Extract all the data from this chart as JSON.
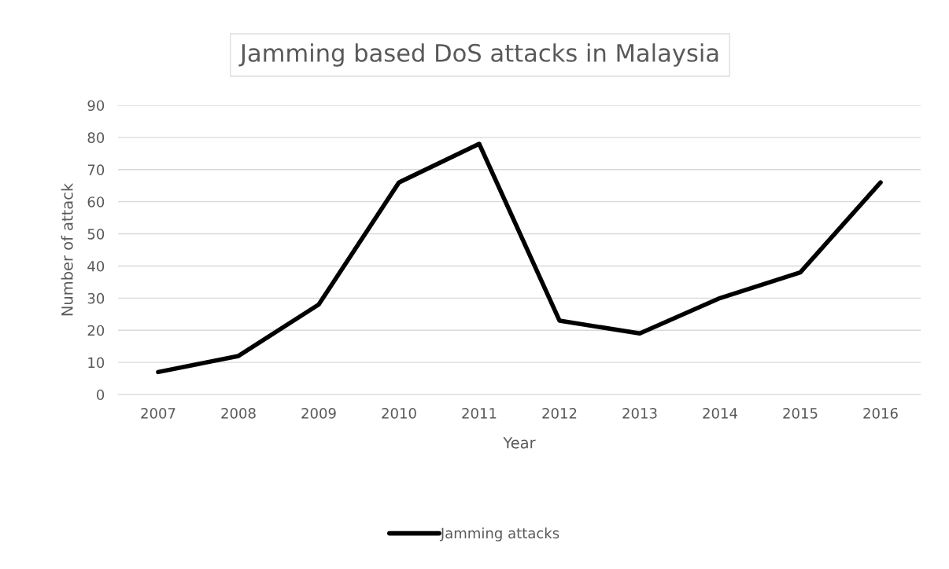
{
  "chart_data": {
    "type": "line",
    "title": "Jamming based DoS attacks in Malaysia",
    "xlabel": "Year",
    "ylabel": "Number of attack",
    "categories": [
      "2007",
      "2008",
      "2009",
      "2010",
      "2011",
      "2012",
      "2013",
      "2014",
      "2015",
      "2016"
    ],
    "series": [
      {
        "name": "Jamming attacks",
        "color": "#000000",
        "values": [
          7,
          12,
          28,
          66,
          78,
          23,
          19,
          30,
          38,
          66
        ]
      }
    ],
    "ylim": [
      0,
      90
    ],
    "yticks": [
      0,
      10,
      20,
      30,
      40,
      50,
      60,
      70,
      80,
      90
    ],
    "grid": "y",
    "legend": "bottom",
    "marker": "none",
    "line_style": "solid"
  }
}
